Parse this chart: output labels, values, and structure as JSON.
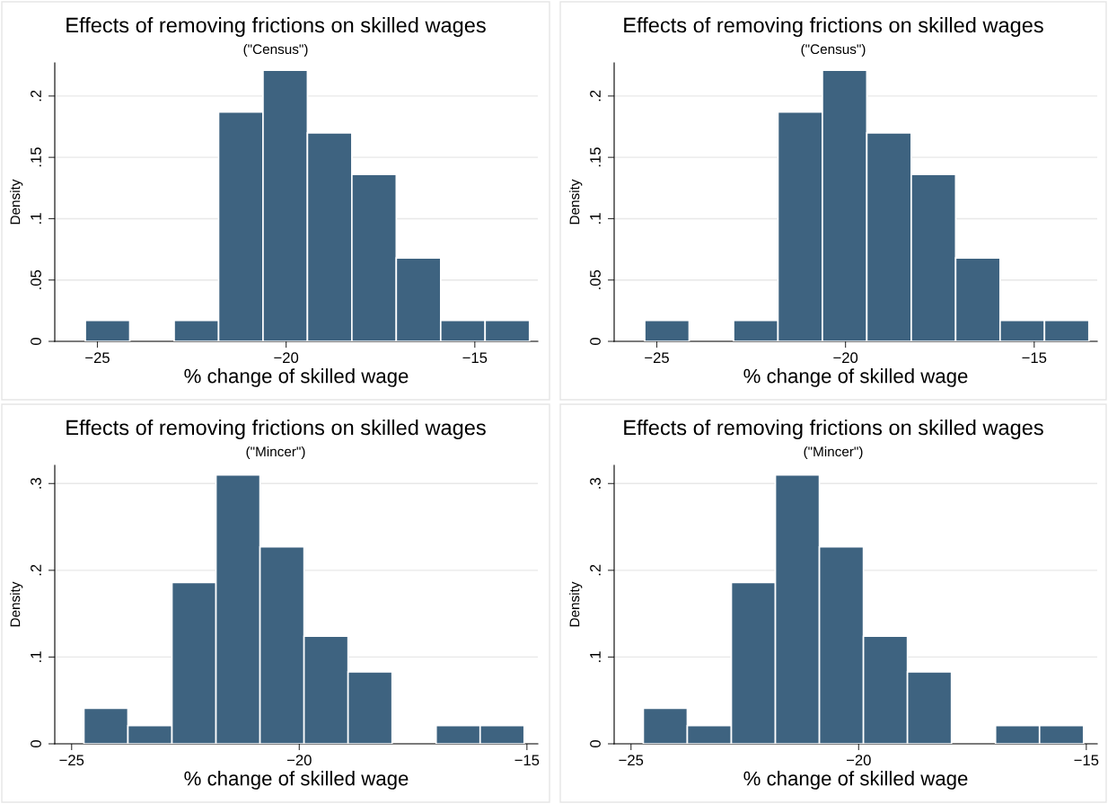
{
  "chart_data": [
    {
      "type": "histogram",
      "title": "Effects of removing frictions on skilled wages",
      "subtitle": "(\"Census\")",
      "xlabel": "% change of skilled wage",
      "ylabel": "Density",
      "color": "#3e6380",
      "bins": [
        -25.32,
        -24.143,
        -22.966,
        -21.789,
        -20.612,
        -19.435,
        -18.258,
        -17.081,
        -15.904,
        -14.727,
        -13.55
      ],
      "values": [
        0.017,
        0,
        0.017,
        0.187,
        0.221,
        0.17,
        0.136,
        0.068,
        0.017,
        0.017
      ],
      "xlim": [
        -26.13,
        -13.33
      ],
      "xticks": [
        {
          "value": -25,
          "label": "−25"
        },
        {
          "value": -20,
          "label": "−20"
        },
        {
          "value": -15,
          "label": "−15"
        }
      ],
      "ylim": [
        0,
        0.227
      ],
      "yticks": [
        {
          "value": 0,
          "label": "0"
        },
        {
          "value": 0.05,
          "label": ".05"
        },
        {
          "value": 0.1,
          "label": ".1"
        },
        {
          "value": 0.15,
          "label": ".15"
        },
        {
          "value": 0.2,
          "label": ".2"
        }
      ],
      "grid": "y"
    },
    {
      "type": "histogram",
      "title": "Effects of removing frictions on skilled wages",
      "subtitle": "(\"Census\")",
      "xlabel": "% change of skilled wage",
      "ylabel": "Density",
      "color": "#3e6380",
      "bins": [
        -25.32,
        -24.143,
        -22.966,
        -21.789,
        -20.612,
        -19.435,
        -18.258,
        -17.081,
        -15.904,
        -14.727,
        -13.55
      ],
      "values": [
        0.017,
        0,
        0.017,
        0.187,
        0.221,
        0.17,
        0.136,
        0.068,
        0.017,
        0.017
      ],
      "xlim": [
        -26.13,
        -13.33
      ],
      "xticks": [
        {
          "value": -25,
          "label": "−25"
        },
        {
          "value": -20,
          "label": "−20"
        },
        {
          "value": -15,
          "label": "−15"
        }
      ],
      "ylim": [
        0,
        0.227
      ],
      "yticks": [
        {
          "value": 0,
          "label": "0"
        },
        {
          "value": 0.05,
          "label": ".05"
        },
        {
          "value": 0.1,
          "label": ".1"
        },
        {
          "value": 0.15,
          "label": ".15"
        },
        {
          "value": 0.2,
          "label": ".2"
        }
      ],
      "grid": "y"
    },
    {
      "type": "histogram",
      "title": "Effects of removing frictions on skilled wages",
      "subtitle": "(\"Mincer\")",
      "xlabel": "% change of skilled wage",
      "ylabel": "Density",
      "color": "#3e6380",
      "bins": [
        -24.73,
        -23.763,
        -22.796,
        -21.829,
        -20.862,
        -19.895,
        -18.928,
        -17.961,
        -16.994,
        -16.027,
        -15.06
      ],
      "values": [
        0.041,
        0.021,
        0.186,
        0.31,
        0.227,
        0.124,
        0.083,
        0,
        0.021,
        0.021
      ],
      "xlim": [
        -25.37,
        -14.76
      ],
      "xticks": [
        {
          "value": -25,
          "label": "−25"
        },
        {
          "value": -20,
          "label": "−20"
        },
        {
          "value": -15,
          "label": "−15"
        }
      ],
      "ylim": [
        0,
        0.321
      ],
      "yticks": [
        {
          "value": 0,
          "label": "0"
        },
        {
          "value": 0.1,
          "label": ".1"
        },
        {
          "value": 0.2,
          "label": ".2"
        },
        {
          "value": 0.3,
          "label": ".3"
        }
      ],
      "grid": "y"
    },
    {
      "type": "histogram",
      "title": "Effects of removing frictions on skilled wages",
      "subtitle": "(\"Mincer\")",
      "xlabel": "% change of skilled wage",
      "ylabel": "Density",
      "color": "#3e6380",
      "bins": [
        -24.73,
        -23.763,
        -22.796,
        -21.829,
        -20.862,
        -19.895,
        -18.928,
        -17.961,
        -16.994,
        -16.027,
        -15.06
      ],
      "values": [
        0.041,
        0.021,
        0.186,
        0.31,
        0.227,
        0.124,
        0.083,
        0,
        0.021,
        0.021
      ],
      "xlim": [
        -25.37,
        -14.76
      ],
      "xticks": [
        {
          "value": -25,
          "label": "−25"
        },
        {
          "value": -20,
          "label": "−20"
        },
        {
          "value": -15,
          "label": "−15"
        }
      ],
      "ylim": [
        0,
        0.321
      ],
      "yticks": [
        {
          "value": 0,
          "label": "0"
        },
        {
          "value": 0.1,
          "label": ".1"
        },
        {
          "value": 0.2,
          "label": ".2"
        },
        {
          "value": 0.3,
          "label": ".3"
        }
      ],
      "grid": "y"
    }
  ]
}
